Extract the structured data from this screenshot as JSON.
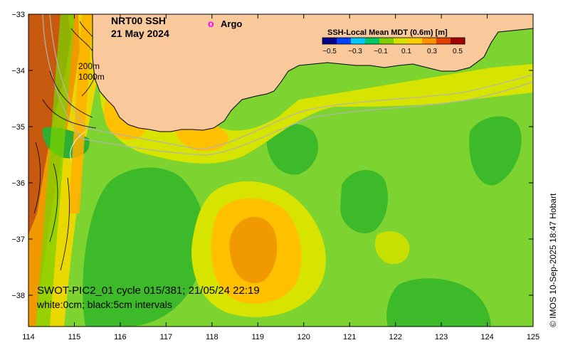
{
  "title": {
    "line1": "NRT00 SSH",
    "line2": "21 May 2024"
  },
  "argo_legend": {
    "symbol": "o",
    "label": "Argo",
    "color": "#ff00ff"
  },
  "depth_labels": [
    "200m",
    "1000m"
  ],
  "colorbar": {
    "title": "SSH-Local Mean MDT (0.6m) [m]",
    "ticks": [
      "−0.5",
      "−0.3",
      "−0.1",
      "0.1",
      "0.3",
      "0.5"
    ],
    "colors": [
      "#00008b",
      "#0040ff",
      "#00c8ff",
      "#00c864",
      "#7cd000",
      "#d8e000",
      "#ffd000",
      "#ff9000",
      "#e04000",
      "#a00000"
    ]
  },
  "annotation": {
    "line1": "SWOT-PIC2_01 cycle 015/381; 21/05/24 22:19",
    "line2": "white:0cm; black:5cm intervals"
  },
  "copyright": "© IMOS 10-Sep-2025 18:47 Hobart",
  "axes": {
    "x_ticks": [
      "114",
      "115",
      "116",
      "117",
      "118",
      "119",
      "120",
      "121",
      "122",
      "123",
      "124",
      "125"
    ],
    "y_ticks": [
      "−33",
      "−34",
      "−35",
      "−36",
      "−37",
      "−38"
    ]
  },
  "colors": {
    "land": "#f9c89b",
    "sea_base": "#7dd330",
    "bathymetry": "#b4b4b4"
  }
}
